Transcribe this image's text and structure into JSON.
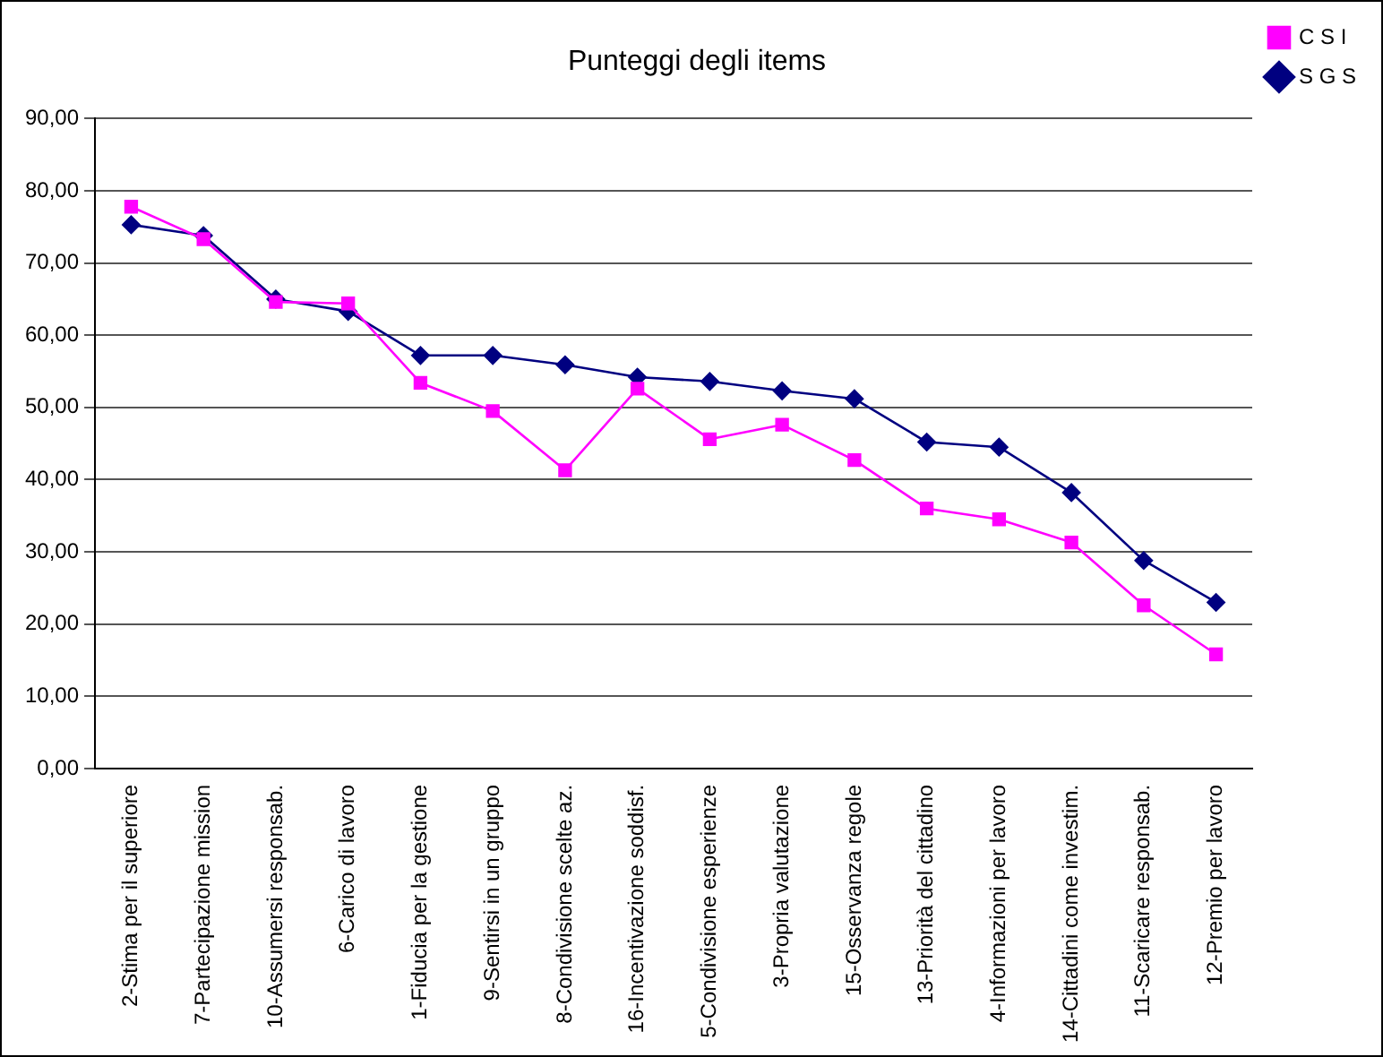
{
  "chart_data": {
    "type": "line",
    "title": "Punteggi degli items",
    "categories": [
      "2-Stima per il superiore",
      "7-Partecipazione mission",
      "10-Assumersi responsab.",
      "6-Carico di lavoro",
      "1-Fiducia per la gestione",
      "9-Sentirsi in un gruppo",
      "8-Condivisione scelte az.",
      "16-Incentivazione soddisf.",
      "5-Condivisione esperienze",
      "3-Propria valutazione",
      "15-Osservanza regole",
      "13-Priorità del cittadino",
      "4-Informazioni per lavoro",
      "14-Cittadini come investim.",
      "11-Scaricare responsab.",
      "12-Premio per lavoro"
    ],
    "series": [
      {
        "name": "S G S",
        "color": "#000080",
        "marker": "diamond",
        "values": [
          75.3,
          73.8,
          65.0,
          63.3,
          57.2,
          57.2,
          55.9,
          54.2,
          53.6,
          52.3,
          51.2,
          45.2,
          44.5,
          38.2,
          28.8,
          23.0
        ]
      },
      {
        "name": "C S I",
        "color": "#ff00ff",
        "marker": "square",
        "values": [
          77.8,
          73.3,
          64.6,
          64.4,
          53.4,
          49.5,
          41.3,
          52.6,
          45.6,
          47.6,
          42.7,
          36.0,
          34.5,
          31.3,
          22.6,
          15.8
        ]
      }
    ],
    "ylim": [
      0,
      90
    ],
    "yticks": [
      {
        "value": 0,
        "label": "0,00"
      },
      {
        "value": 10,
        "label": "10,00"
      },
      {
        "value": 20,
        "label": "20,00"
      },
      {
        "value": 30,
        "label": "30,00"
      },
      {
        "value": 40,
        "label": "40,00"
      },
      {
        "value": 50,
        "label": "50,00"
      },
      {
        "value": 60,
        "label": "60,00"
      },
      {
        "value": 70,
        "label": "70,00"
      },
      {
        "value": 80,
        "label": "80,00"
      },
      {
        "value": 90,
        "label": "90,00"
      }
    ],
    "grid": "y",
    "legend": "top right"
  }
}
